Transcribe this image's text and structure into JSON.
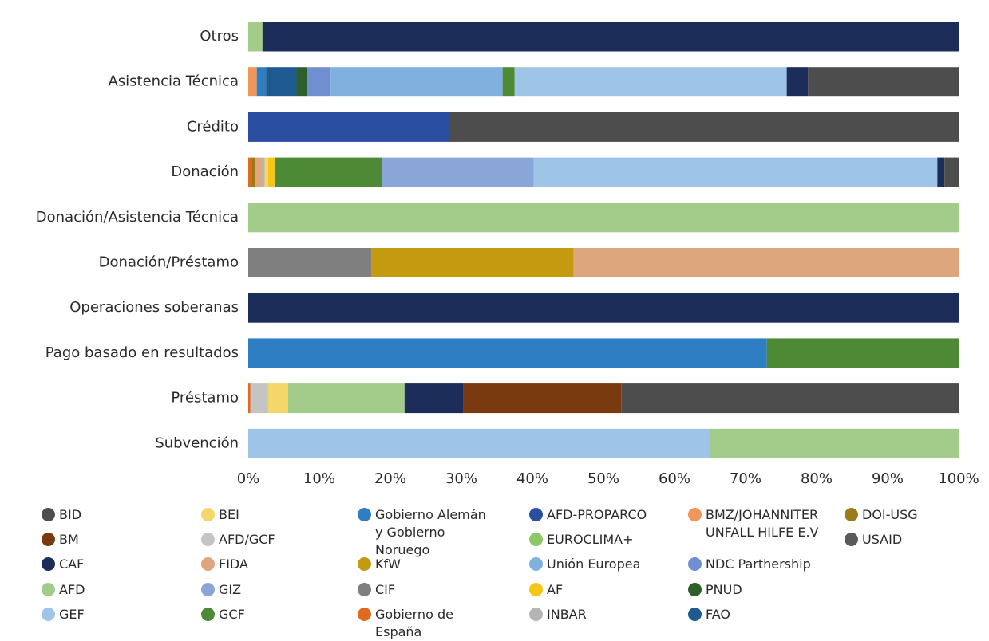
{
  "chart_data": {
    "type": "stacked_barh",
    "categories": [
      "Otros",
      "Asistencia Técnica",
      "Crédito",
      "Donación",
      "Donación/Asistencia Técnica",
      "Donación/Préstamo",
      "Operaciones soberanas",
      "Pago basado en resultados",
      "Préstamo",
      "Subvención"
    ],
    "xlim": [
      0,
      100
    ],
    "xticks": [
      {
        "value": 0,
        "label": "0%"
      },
      {
        "value": 10,
        "label": "10%"
      },
      {
        "value": 20,
        "label": "20%"
      },
      {
        "value": 30,
        "label": "30%"
      },
      {
        "value": 40,
        "label": "40%"
      },
      {
        "value": 50,
        "label": "50%"
      },
      {
        "value": 60,
        "label": "60%"
      },
      {
        "value": 70,
        "label": "70%"
      },
      {
        "value": 80,
        "label": "80%"
      },
      {
        "value": 90,
        "label": "90%"
      },
      {
        "value": 100,
        "label": "100%"
      }
    ],
    "series": [
      {
        "name": "BID",
        "color": "#4d4d4d",
        "values": [
          0,
          21.2,
          71.7,
          2,
          0,
          0,
          0,
          0,
          47.5,
          0
        ]
      },
      {
        "name": "BM",
        "color": "#7a3a10",
        "values": [
          0,
          0,
          0,
          0,
          0,
          0,
          0,
          0,
          22.2,
          0
        ]
      },
      {
        "name": "CAF",
        "color": "#1b2d58",
        "values": [
          98,
          3,
          0,
          1,
          0,
          0,
          100,
          0,
          8.3,
          0
        ]
      },
      {
        "name": "AFD",
        "color": "#a3cc8a",
        "values": [
          2,
          0,
          0,
          0,
          100,
          0,
          0,
          0,
          16.4,
          35
        ]
      },
      {
        "name": "GEF",
        "color": "#9ec5e8",
        "values": [
          0,
          38.3,
          0,
          56.8,
          0,
          0,
          0,
          0,
          0,
          65
        ]
      },
      {
        "name": "BEI",
        "color": "#f5d66b",
        "values": [
          0,
          0,
          0,
          0.5,
          0,
          0,
          0,
          0,
          2.8,
          0
        ]
      },
      {
        "name": "AFD/GCF",
        "color": "#c4c4c4",
        "values": [
          0,
          0,
          0,
          0,
          0,
          0,
          0,
          0,
          2.5,
          0
        ]
      },
      {
        "name": "FIDA",
        "color": "#dea67c",
        "values": [
          0,
          0,
          0,
          0.8,
          0,
          54.2,
          0,
          0,
          0,
          0
        ]
      },
      {
        "name": "GIZ",
        "color": "#8aa6d8",
        "values": [
          0,
          0,
          0,
          21.4,
          0,
          0,
          0,
          0,
          0,
          0
        ]
      },
      {
        "name": "GCF",
        "color": "#4e8a35",
        "values": [
          0,
          1.7,
          0,
          15.1,
          0,
          0,
          0,
          27,
          0,
          0
        ]
      },
      {
        "name": "Gobierno Alemán y Gobierno Noruego",
        "color": "#2e7ec4",
        "values": [
          0,
          1.3,
          0,
          0,
          0,
          0,
          0,
          73,
          0,
          0
        ]
      },
      {
        "name": "KfW",
        "color": "#c49a10",
        "values": [
          0,
          0,
          0,
          0,
          0,
          28.5,
          0,
          0,
          0,
          0
        ]
      },
      {
        "name": "CIF",
        "color": "#7f7f7f",
        "values": [
          0,
          0,
          0,
          0,
          0,
          17.3,
          0,
          0,
          0,
          0
        ]
      },
      {
        "name": "Gobierno de España",
        "color": "#e06a20",
        "values": [
          0,
          0,
          0,
          0.5,
          0,
          0,
          0,
          0,
          0.3,
          0
        ]
      },
      {
        "name": "AFD-PROPARCO",
        "color": "#2b4fa0",
        "values": [
          0,
          0,
          28.3,
          0,
          0,
          0,
          0,
          0,
          0,
          0
        ]
      },
      {
        "name": "EUROCLIMA+",
        "color": "#8cc86a",
        "values": [
          0,
          0,
          0,
          0,
          0,
          0,
          0,
          0,
          0,
          0
        ]
      },
      {
        "name": "Unión Europea",
        "color": "#7fb0de",
        "values": [
          0,
          24.2,
          0,
          0,
          0,
          0,
          0,
          0,
          0,
          0
        ]
      },
      {
        "name": "AF",
        "color": "#f5c518",
        "values": [
          0,
          0,
          0,
          0.9,
          0,
          0,
          0,
          0,
          0,
          0
        ]
      },
      {
        "name": "INBAR",
        "color": "#b5b5b5",
        "values": [
          0,
          0,
          0,
          0.5,
          0,
          0,
          0,
          0,
          0,
          0
        ]
      },
      {
        "name": "BMZ/JOHANNITER UNFALL HILFE E.V",
        "color": "#f0965a",
        "values": [
          0,
          1.2,
          0,
          0,
          0,
          0,
          0,
          0,
          0,
          0
        ]
      },
      {
        "name": "NDC Parthership",
        "color": "#6f8fd0",
        "values": [
          0,
          3.3,
          0,
          0,
          0,
          0,
          0,
          0,
          0,
          0
        ]
      },
      {
        "name": "PNUD",
        "color": "#2e5e2a",
        "values": [
          0,
          1.5,
          0,
          0,
          0,
          0,
          0,
          0,
          0,
          0
        ]
      },
      {
        "name": "FAO",
        "color": "#1e5a90",
        "values": [
          0,
          4.3,
          0,
          0,
          0,
          0,
          0,
          0,
          0,
          0
        ]
      },
      {
        "name": "DOI-USG",
        "color": "#9a7a1a",
        "values": [
          0,
          0,
          0,
          0.5,
          0,
          0,
          0,
          0,
          0,
          0
        ]
      },
      {
        "name": "USAID",
        "color": "#5a5a5a",
        "values": [
          0,
          0,
          0,
          0,
          0,
          0,
          0,
          0,
          0,
          0
        ]
      }
    ]
  }
}
